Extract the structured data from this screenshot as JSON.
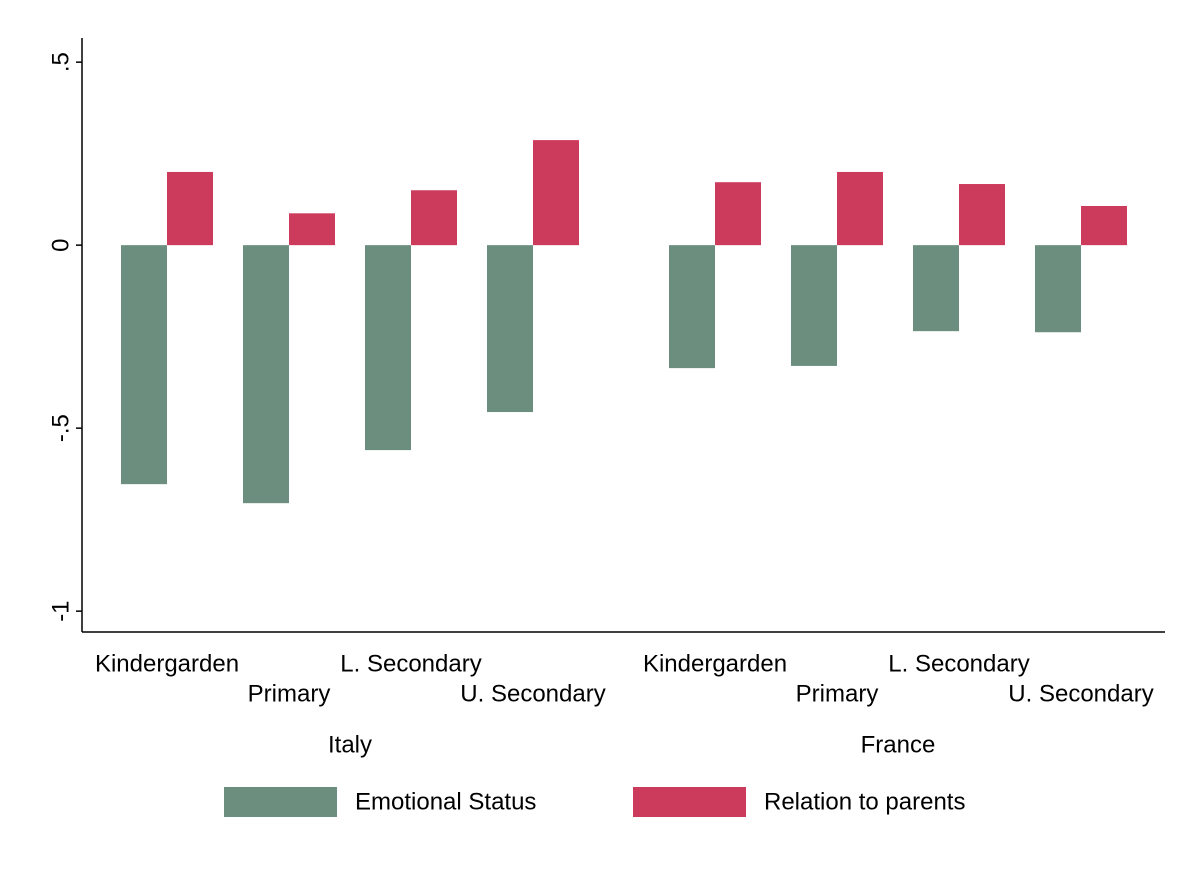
{
  "chart_data": {
    "type": "bar",
    "groups": [
      "Italy",
      "France"
    ],
    "categories": [
      "Kindergarden",
      "Primary",
      "L. Secondary",
      "U. Secondary",
      "Kindergarden",
      "Primary",
      "L. Secondary",
      "U. Secondary"
    ],
    "series": [
      {
        "name": "Emotional Status",
        "color": "#6b8e7f",
        "values": [
          -0.653,
          -0.705,
          -0.56,
          -0.456,
          -0.336,
          -0.33,
          -0.235,
          -0.238
        ]
      },
      {
        "name": "Relation to parents",
        "color": "#cc3a5c",
        "values": [
          0.2,
          0.087,
          0.15,
          0.287,
          0.172,
          0.2,
          0.167,
          0.107
        ]
      }
    ],
    "ylim": [
      -1.057,
      0.566
    ],
    "yticks": [
      {
        "value": -1,
        "label": "-1"
      },
      {
        "value": -0.5,
        "label": "-.5"
      },
      0,
      {
        "value": 0.5,
        "label": ".5"
      }
    ],
    "grid": false,
    "legend": "bottom"
  }
}
